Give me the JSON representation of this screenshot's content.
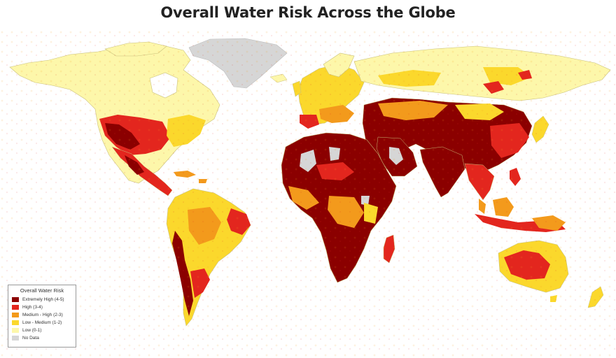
{
  "map": {
    "title": "Overall Water Risk Across the Globe",
    "legend": {
      "title": "Overall Water Risk",
      "items": [
        {
          "label": "Extremely High (4-5)",
          "color": "#8b0000",
          "icon": "dark-red-swatch"
        },
        {
          "label": "High (3-4)",
          "color": "#e3261e",
          "icon": "red-swatch"
        },
        {
          "label": "Medium - High (2-3)",
          "color": "#f39a1c",
          "icon": "orange-swatch"
        },
        {
          "label": "Low - Medium (1-2)",
          "color": "#fbd82c",
          "icon": "yellow-swatch"
        },
        {
          "label": "Low (0-1)",
          "color": "#fdf7aa",
          "icon": "pale-yellow-swatch"
        },
        {
          "label": "No Data",
          "color": "#d6d6d6",
          "icon": "gray-swatch"
        }
      ]
    }
  }
}
